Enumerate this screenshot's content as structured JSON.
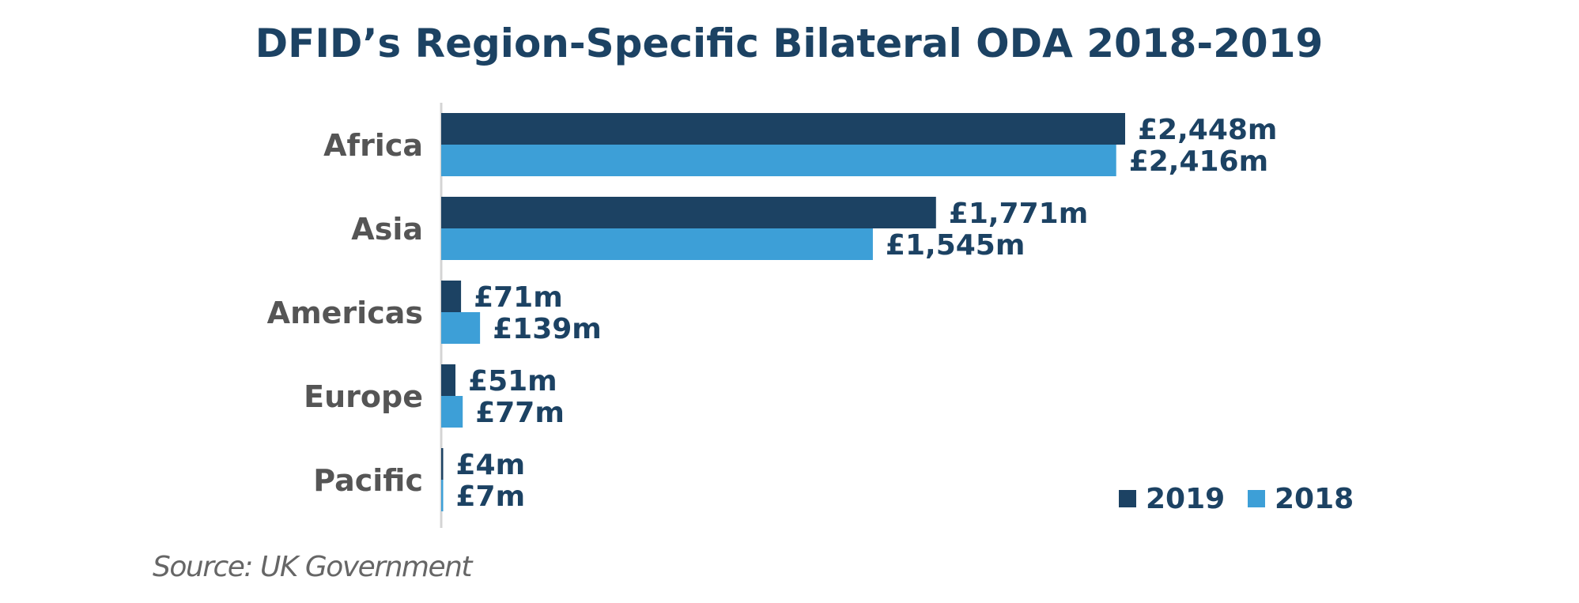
{
  "chart_data": {
    "type": "bar",
    "orientation": "horizontal",
    "title": "DFID’s Region-Specific Bilateral ODA 2018-2019",
    "categories": [
      "Africa",
      "Asia",
      "Americas",
      "Europe",
      "Pacific"
    ],
    "series": [
      {
        "name": "2019",
        "color": "#1c4263",
        "values": [
          2448,
          1771,
          71,
          51,
          4
        ],
        "labels": [
          "£2,448m",
          "£1,771m",
          "£71m",
          "£51m",
          "£4m"
        ]
      },
      {
        "name": "2018",
        "color": "#3d9fd7",
        "values": [
          2416,
          1545,
          139,
          77,
          7
        ],
        "labels": [
          "£2,416m",
          "£1,545m",
          "£139m",
          "£77m",
          "£7m"
        ]
      }
    ],
    "xlim": [
      0,
      2900
    ],
    "grid": false,
    "legend_position": "bottom-right",
    "source": "Source: UK Government"
  },
  "colors": {
    "title": "#1c4263",
    "category_label": "#555555",
    "value_label": "#1c4263",
    "source": "#666666",
    "axis": "#d4d4d4"
  }
}
